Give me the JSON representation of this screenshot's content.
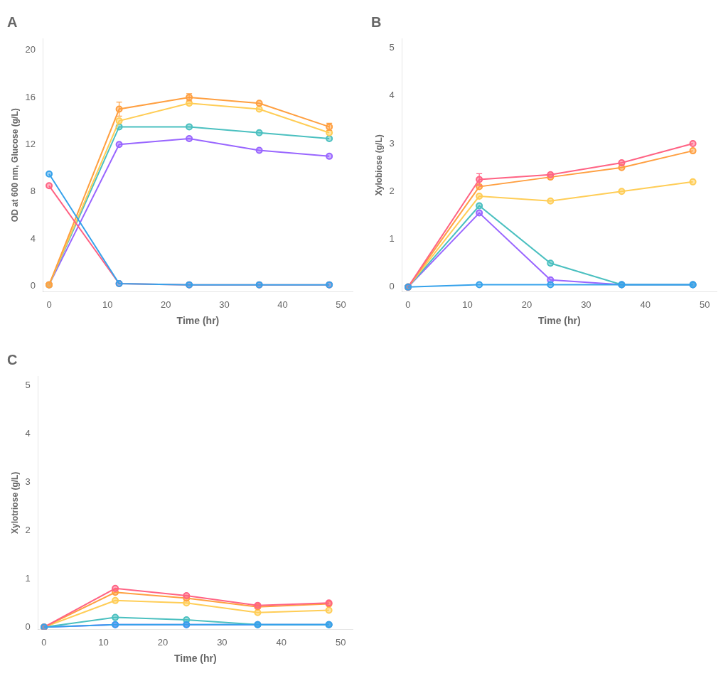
{
  "chart_data": [
    {
      "type": "line",
      "title": "A",
      "xlabel": "Time (hr)",
      "ylabel": "OD at 600 nm, Glucose (g/L)",
      "marker": "circle",
      "grid": false,
      "x": [
        0,
        12,
        24,
        36,
        48
      ],
      "xlim": [
        -1,
        52
      ],
      "xticks": [
        0,
        10,
        20,
        30,
        40,
        50
      ],
      "ylim": [
        -0.5,
        21
      ],
      "yticks": [
        0,
        4,
        8,
        12,
        16,
        20
      ],
      "series": [
        {
          "values": [
            9.5,
            0.2,
            0.1,
            0.1,
            0.1
          ]
        },
        {
          "values": [
            8.5,
            0.2,
            0.1,
            0.1,
            0.1
          ]
        },
        {
          "values": [
            0.1,
            15.0,
            16.0,
            15.5,
            13.5
          ],
          "yerr": [
            0,
            0.6,
            0.3,
            0,
            0.3
          ]
        },
        {
          "values": [
            0.1,
            14.0,
            15.5,
            15.0,
            13.0
          ]
        },
        {
          "values": [
            0.1,
            13.5,
            13.5,
            13.0,
            12.5
          ]
        },
        {
          "values": [
            0.1,
            12.0,
            12.5,
            11.5,
            11.0
          ]
        }
      ]
    },
    {
      "type": "line",
      "title": "B",
      "xlabel": "Time (hr)",
      "ylabel": "Xylobiose (g/L)",
      "marker": "circle",
      "grid": false,
      "x": [
        0,
        12,
        24,
        36,
        48
      ],
      "xlim": [
        -1,
        52
      ],
      "xticks": [
        0,
        10,
        20,
        30,
        40,
        50
      ],
      "ylim": [
        -0.1,
        5.2
      ],
      "yticks": [
        0,
        1,
        2,
        3,
        4,
        5
      ],
      "series": [
        {
          "values": [
            0,
            0.05,
            0.05,
            0.05,
            0.05
          ]
        },
        {
          "values": [
            0,
            2.25,
            2.35,
            2.6,
            3.0
          ],
          "yerr": [
            0,
            0.12,
            0,
            0,
            0
          ]
        },
        {
          "values": [
            0,
            2.1,
            2.3,
            2.5,
            2.85
          ]
        },
        {
          "values": [
            0,
            1.9,
            1.8,
            2.0,
            2.2
          ]
        },
        {
          "values": [
            0,
            1.7,
            0.5,
            0.05,
            0.05
          ]
        },
        {
          "values": [
            0,
            1.55,
            0.15,
            0.05,
            0.05
          ]
        }
      ]
    },
    {
      "type": "line",
      "title": "C",
      "xlabel": "Time (hr)",
      "ylabel": "Xylotriose (g/L)",
      "marker": "circle",
      "grid": false,
      "x": [
        0,
        12,
        24,
        36,
        48
      ],
      "xlim": [
        -1,
        52
      ],
      "xticks": [
        0,
        10,
        20,
        30,
        40,
        50
      ],
      "ylim": [
        -0.05,
        5.2
      ],
      "yticks": [
        0,
        1,
        2,
        3,
        4,
        5
      ],
      "series": [
        {
          "values": [
            0,
            0.05,
            0.05,
            0.05,
            0.05
          ]
        },
        {
          "values": [
            0,
            0.8,
            0.65,
            0.45,
            0.5
          ]
        },
        {
          "values": [
            0,
            0.72,
            0.6,
            0.42,
            0.48
          ]
        },
        {
          "values": [
            0,
            0.55,
            0.5,
            0.3,
            0.35
          ]
        },
        {
          "values": [
            0,
            0.2,
            0.15,
            0.05,
            0.05
          ]
        },
        {
          "values": [
            0,
            0.05,
            0.05,
            0.05,
            0.05
          ]
        }
      ]
    }
  ]
}
